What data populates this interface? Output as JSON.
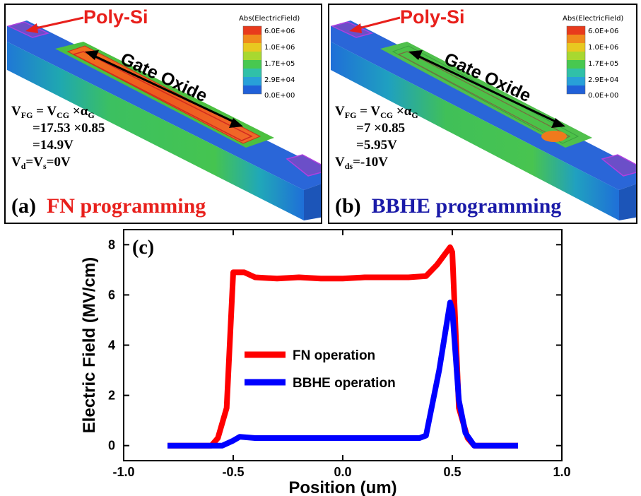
{
  "panel_a": {
    "tag": "(a)",
    "caption": "FN programming",
    "caption_color": "#e8201c",
    "polysi_label": "Poly-Si",
    "gate_oxide_label": "Gate Oxide",
    "eq_line1_prefix": "V",
    "eq_line1_sub1": "FG",
    "eq_line1_mid": " = V",
    "eq_line1_sub2": "CG",
    "eq_line1_times": " ×α",
    "eq_line1_sub3": "G",
    "eq_line2": "=17.53 ×0.85",
    "eq_line3": "=14.9V",
    "eq_line4_prefix": "V",
    "eq_line4_sub1": "d",
    "eq_line4_mid": "=V",
    "eq_line4_sub2": "s",
    "eq_line4_end": "=0V"
  },
  "panel_b": {
    "tag": "(b)",
    "caption": "BBHE programming",
    "caption_color": "#1a1aa8",
    "polysi_label": "Poly-Si",
    "gate_oxide_label": "Gate Oxide",
    "eq_line1_prefix": "V",
    "eq_line1_sub1": "FG",
    "eq_line1_mid": " = V",
    "eq_line1_sub2": "CG",
    "eq_line1_times": " ×α",
    "eq_line1_sub3": "G",
    "eq_line2": "=7 ×0.85",
    "eq_line3": "=5.95V",
    "eq_line4_prefix": "V",
    "eq_line4_sub1": "ds",
    "eq_line4_end": "=-10V"
  },
  "colorbar": {
    "title": "Abs(ElectricField)",
    "ticks": [
      "6.0E+06",
      "1.0E+06",
      "1.7E+05",
      "2.9E+04",
      "0.0E+00"
    ]
  },
  "chart_data": {
    "type": "line",
    "panel_tag": "(c)",
    "xlabel": "Position (um)",
    "ylabel": "Electric Field (MV/cm)",
    "xlim": [
      -1.0,
      1.0
    ],
    "ylim": [
      -0.6,
      8.6
    ],
    "xticks": [
      -1.0,
      -0.5,
      0.0,
      0.5,
      1.0
    ],
    "xtick_labels": [
      "-1.0",
      "-0.5",
      "0.0",
      "0.5",
      "1.0"
    ],
    "yticks": [
      0,
      2,
      4,
      6,
      8
    ],
    "ytick_labels": [
      "0",
      "2",
      "4",
      "6",
      "8"
    ],
    "legend_position": "center",
    "series": [
      {
        "name": "FN operation",
        "color": "#ff0000",
        "points": [
          [
            -0.8,
            0.0
          ],
          [
            -0.6,
            0.0
          ],
          [
            -0.57,
            0.3
          ],
          [
            -0.53,
            1.5
          ],
          [
            -0.5,
            6.9
          ],
          [
            -0.45,
            6.9
          ],
          [
            -0.4,
            6.7
          ],
          [
            -0.3,
            6.65
          ],
          [
            -0.2,
            6.7
          ],
          [
            -0.1,
            6.65
          ],
          [
            0.0,
            6.65
          ],
          [
            0.1,
            6.7
          ],
          [
            0.2,
            6.7
          ],
          [
            0.3,
            6.7
          ],
          [
            0.38,
            6.75
          ],
          [
            0.43,
            7.2
          ],
          [
            0.49,
            7.9
          ],
          [
            0.5,
            7.7
          ],
          [
            0.53,
            1.5
          ],
          [
            0.57,
            0.3
          ],
          [
            0.6,
            0.0
          ],
          [
            0.8,
            0.0
          ]
        ]
      },
      {
        "name": "BBHE operation",
        "color": "#0000ff",
        "points": [
          [
            -0.8,
            0.0
          ],
          [
            -0.55,
            0.0
          ],
          [
            -0.5,
            0.2
          ],
          [
            -0.47,
            0.35
          ],
          [
            -0.4,
            0.3
          ],
          [
            -0.2,
            0.3
          ],
          [
            0.0,
            0.3
          ],
          [
            0.2,
            0.3
          ],
          [
            0.35,
            0.3
          ],
          [
            0.38,
            0.4
          ],
          [
            0.44,
            3.0
          ],
          [
            0.49,
            5.7
          ],
          [
            0.5,
            5.4
          ],
          [
            0.53,
            1.8
          ],
          [
            0.56,
            0.5
          ],
          [
            0.6,
            0.0
          ],
          [
            0.8,
            0.0
          ]
        ]
      }
    ]
  }
}
